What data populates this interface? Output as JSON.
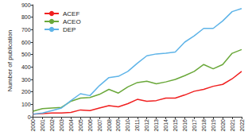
{
  "chart_data": {
    "type": "line",
    "y_label": "Number of publication",
    "categories": [
      "2000",
      "2001",
      "2002",
      "2003",
      "2004",
      "2005",
      "2006",
      "2007",
      "2008",
      "2009",
      "2010",
      "2011",
      "2012",
      "2013",
      "2014",
      "2015",
      "2016",
      "2017",
      "2018",
      "2019",
      "2020",
      "2021",
      "2022"
    ],
    "series": [
      {
        "name": "ACEF",
        "color": "#f02020",
        "values": [
          20,
          25,
          30,
          30,
          35,
          55,
          50,
          70,
          90,
          80,
          105,
          140,
          125,
          130,
          150,
          150,
          175,
          205,
          220,
          245,
          260,
          305,
          365
        ]
      },
      {
        "name": "ACEO",
        "color": "#6aa83a",
        "values": [
          45,
          65,
          70,
          75,
          125,
          150,
          155,
          180,
          220,
          190,
          240,
          275,
          285,
          265,
          280,
          300,
          330,
          365,
          420,
          385,
          420,
          510,
          540
        ]
      },
      {
        "name": "DEP",
        "color": "#5fb4e8",
        "values": [
          20,
          30,
          50,
          70,
          130,
          185,
          170,
          250,
          315,
          325,
          365,
          430,
          490,
          505,
          510,
          520,
          600,
          650,
          710,
          710,
          770,
          845,
          870
        ]
      }
    ],
    "ylim": [
      0,
      900
    ],
    "yticks": [
      0,
      100,
      200,
      300,
      400,
      500,
      600,
      700,
      800,
      900
    ],
    "grid": false,
    "legend": "top-left"
  }
}
